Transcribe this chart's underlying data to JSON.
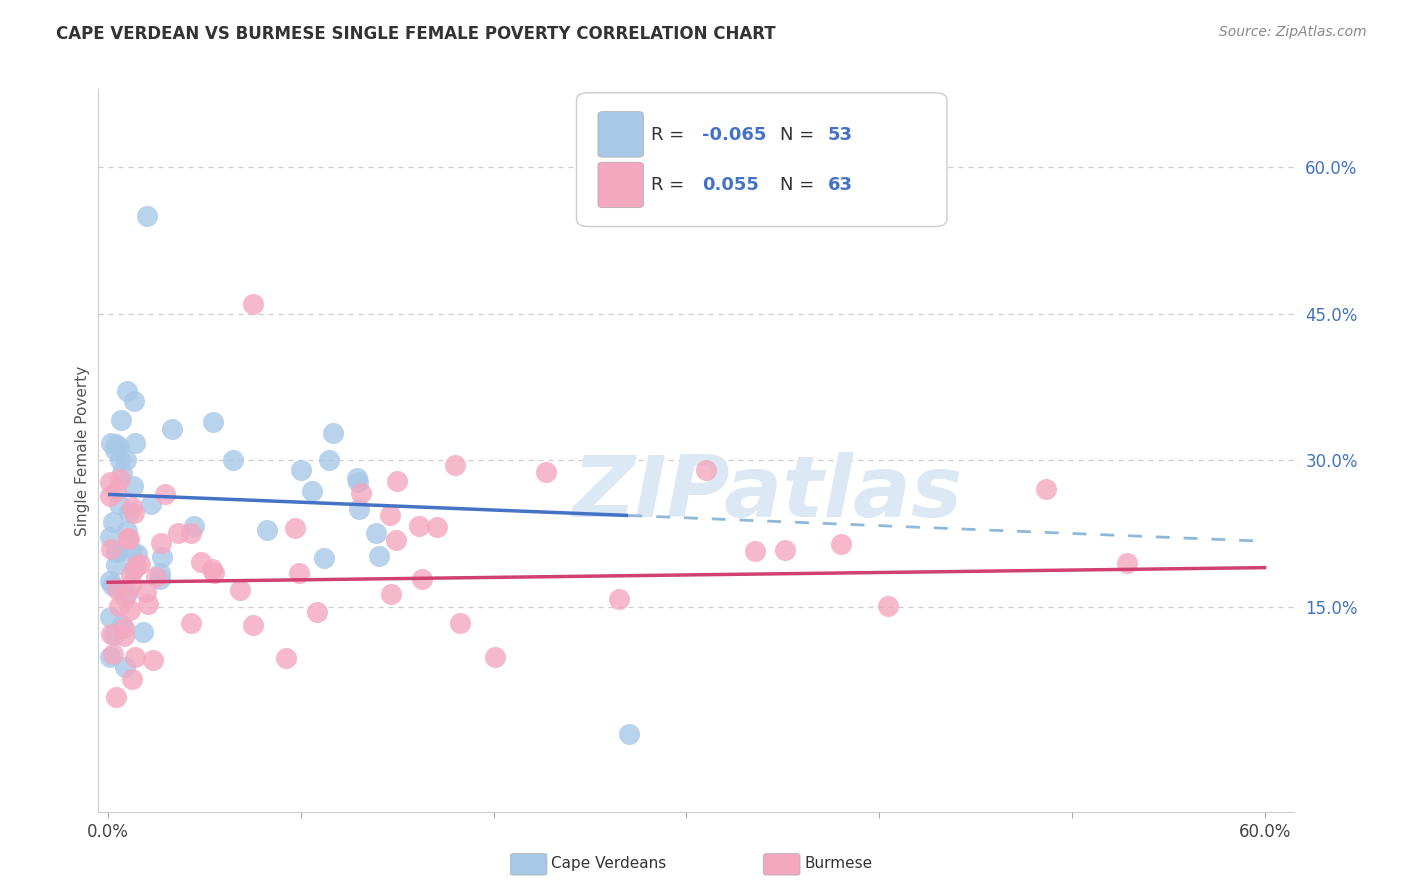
{
  "title": "CAPE VERDEAN VS BURMESE SINGLE FEMALE POVERTY CORRELATION CHART",
  "source": "Source: ZipAtlas.com",
  "ylabel": "Single Female Poverty",
  "ytick_vals": [
    0.15,
    0.3,
    0.45,
    0.6
  ],
  "ytick_labels": [
    "15.0%",
    "30.0%",
    "45.0%",
    "60.0%"
  ],
  "xtick_vals": [
    0.0,
    0.1,
    0.2,
    0.3,
    0.4,
    0.5,
    0.6
  ],
  "xtick_labels": [
    "0.0%",
    "",
    "",
    "",
    "",
    "",
    "60.0%"
  ],
  "xlim": [
    -0.005,
    0.615
  ],
  "ylim": [
    -0.06,
    0.68
  ],
  "r_cape": -0.065,
  "n_cape": 53,
  "r_burmese": 0.055,
  "n_burmese": 63,
  "color_cape": "#a8c8e8",
  "color_burmese": "#f4a8c0",
  "color_blue_line": "#4472c4",
  "color_pink_line": "#d04070",
  "color_dashed": "#90b8d8",
  "color_title": "#333333",
  "color_source": "#888888",
  "color_ytick": "#4472c4",
  "watermark_text": "ZIPatlas",
  "watermark_color": "#dce8f4",
  "background_color": "#ffffff",
  "grid_color": "#cccccc",
  "cv_intercept": 0.265,
  "cv_slope": -0.08,
  "bm_intercept": 0.175,
  "bm_slope": 0.025,
  "solid_line_end": 0.27,
  "dashed_line_end": 0.6
}
